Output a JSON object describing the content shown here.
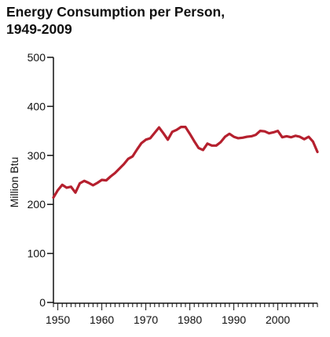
{
  "chart_data": {
    "type": "line",
    "title_lines": [
      "Energy Consumption per Person,",
      "1949-2009"
    ],
    "xlabel": "",
    "ylabel": "Million Btu",
    "xlim": [
      1949,
      2009
    ],
    "ylim": [
      0,
      500
    ],
    "x_ticks": [
      1950,
      1960,
      1970,
      1980,
      1990,
      2000
    ],
    "y_ticks": [
      0,
      100,
      200,
      300,
      400,
      500
    ],
    "grid": false,
    "legend": "none",
    "color": "#b5202e",
    "series": [
      {
        "x": [
          1949,
          1950,
          1951,
          1952,
          1953,
          1954,
          1955,
          1956,
          1957,
          1958,
          1959,
          1960,
          1961,
          1962,
          1963,
          1964,
          1965,
          1966,
          1967,
          1968,
          1969,
          1970,
          1971,
          1972,
          1973,
          1974,
          1975,
          1976,
          1977,
          1978,
          1979,
          1980,
          1981,
          1982,
          1983,
          1984,
          1985,
          1986,
          1987,
          1988,
          1989,
          1990,
          1991,
          1992,
          1993,
          1994,
          1995,
          1996,
          1997,
          1998,
          1999,
          2000,
          2001,
          2002,
          2003,
          2004,
          2005,
          2006,
          2007,
          2008,
          2009
        ],
        "y": [
          214,
          229,
          240,
          234,
          236,
          224,
          243,
          248,
          244,
          239,
          244,
          250,
          249,
          257,
          264,
          273,
          282,
          293,
          298,
          312,
          325,
          332,
          335,
          346,
          357,
          345,
          332,
          348,
          352,
          358,
          358,
          344,
          329,
          315,
          311,
          324,
          320,
          320,
          327,
          338,
          344,
          338,
          335,
          336,
          338,
          339,
          342,
          350,
          349,
          345,
          347,
          350,
          337,
          339,
          337,
          340,
          338,
          333,
          338,
          328,
          307
        ]
      }
    ]
  }
}
